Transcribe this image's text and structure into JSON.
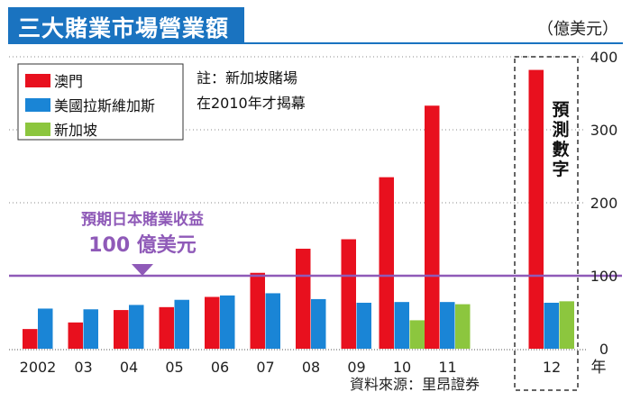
{
  "title": "三大賭業市場營業額",
  "unit": "（億美元）",
  "note": [
    "註：新加坡賭場",
    "在2010年才揭幕"
  ],
  "source": "資料來源：里昂證券",
  "forecast_label": [
    "預",
    "測",
    "數",
    "字"
  ],
  "x_unit": "年",
  "reference_line": {
    "value": 100,
    "label_lines": [
      "預期日本賭業收益",
      "100 億美元"
    ],
    "color": "#8f5ab8"
  },
  "colors": {
    "macau": "#e8101e",
    "lasvegas": "#1a85d6",
    "singapore": "#8cc63e",
    "title_bg": "#1a73c0"
  },
  "chart_data": {
    "type": "bar",
    "categories": [
      "2002",
      "03",
      "04",
      "05",
      "06",
      "07",
      "08",
      "09",
      "10",
      "11",
      "12"
    ],
    "series": [
      {
        "name": "澳門",
        "values": [
          27,
          36,
          53,
          57,
          71,
          104,
          137,
          150,
          235,
          333,
          382
        ]
      },
      {
        "name": "美國拉斯維加斯",
        "values": [
          55,
          54,
          60,
          67,
          73,
          76,
          68,
          63,
          64,
          64,
          63
        ]
      },
      {
        "name": "新加坡",
        "values": [
          null,
          null,
          null,
          null,
          null,
          null,
          null,
          null,
          39,
          61,
          65
        ]
      }
    ],
    "yticks": [
      0,
      100,
      200,
      300,
      400
    ],
    "ylim": [
      0,
      400
    ],
    "forecast_categories": [
      "12"
    ],
    "legend_position": "top-left"
  }
}
